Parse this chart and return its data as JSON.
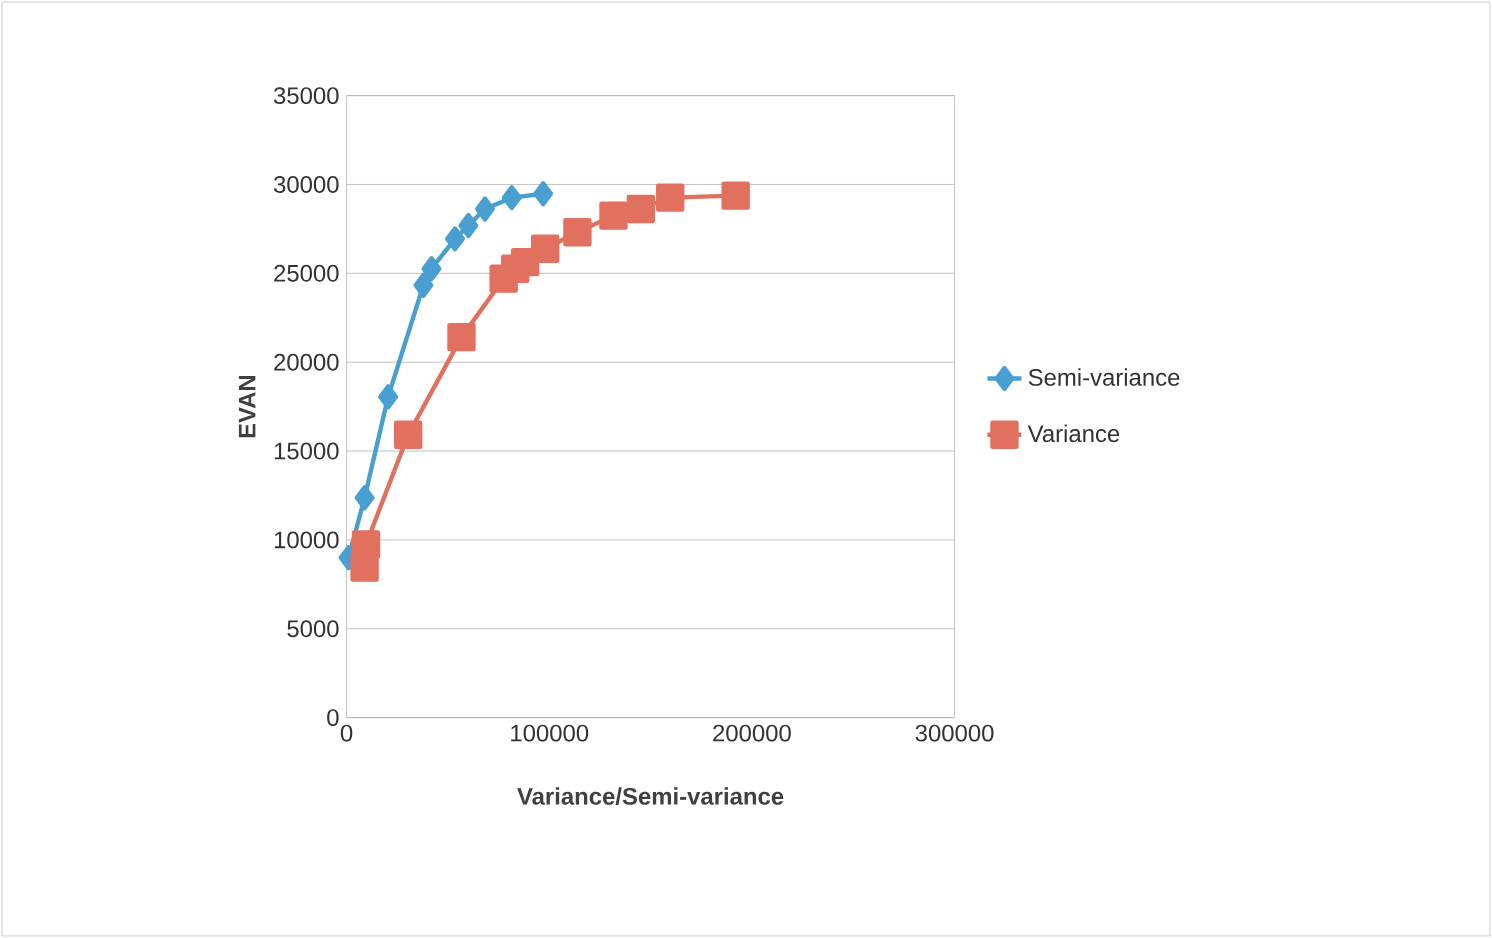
{
  "chart_data": {
    "type": "line",
    "xlabel": "Variance/Semi-variance",
    "ylabel": "EVAN",
    "xlim": [
      0,
      300000
    ],
    "xticks": [
      0,
      100000,
      200000,
      300000
    ],
    "ylim": [
      0,
      35000
    ],
    "yticks": [
      0,
      5000,
      10000,
      15000,
      20000,
      25000,
      30000,
      35000
    ],
    "grid": "y",
    "legend": "right",
    "series": [
      {
        "name": "Semi-variance",
        "color": "#4a9fd1",
        "marker": "diamond",
        "x": [
          1000,
          8900,
          20500,
          37900,
          41900,
          53500,
          60100,
          68300,
          81500,
          97000
        ],
        "values": [
          9000,
          12370,
          18050,
          24330,
          25260,
          26940,
          27690,
          28620,
          29260,
          29480
        ]
      },
      {
        "name": "Variance",
        "color": "#e2705e",
        "marker": "square",
        "x": [
          8900,
          9600,
          30400,
          56700,
          77500,
          83200,
          88100,
          98000,
          113900,
          131700,
          145200,
          159700,
          192000
        ],
        "values": [
          8440,
          9750,
          15920,
          21410,
          24700,
          25260,
          25630,
          26380,
          27310,
          28250,
          28620,
          29260,
          29370
        ]
      }
    ]
  }
}
